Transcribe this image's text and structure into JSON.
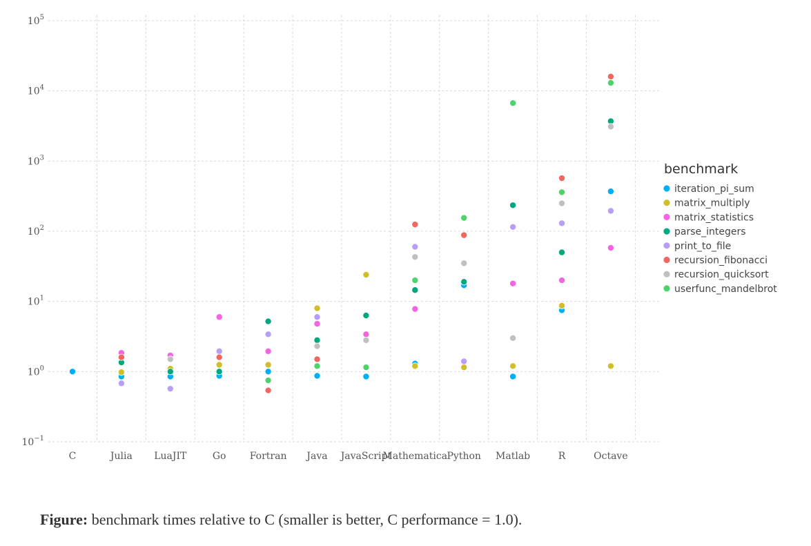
{
  "chart_data": {
    "type": "scatter",
    "y_scale": "log10",
    "ylim": [
      0.1,
      100000
    ],
    "ytick_labels": [
      {
        "base": "10",
        "exp": "−1"
      },
      {
        "base": "10",
        "exp": "0"
      },
      {
        "base": "10",
        "exp": "1"
      },
      {
        "base": "10",
        "exp": "2"
      },
      {
        "base": "10",
        "exp": "3"
      },
      {
        "base": "10",
        "exp": "4"
      },
      {
        "base": "10",
        "exp": "5"
      }
    ],
    "grid": true,
    "legend_placement": "right",
    "legend_title": "benchmark",
    "categories": [
      "C",
      "Julia",
      "LuaJIT",
      "Go",
      "Fortran",
      "Java",
      "JavaScript",
      "Mathematica",
      "Python",
      "Matlab",
      "R",
      "Octave"
    ],
    "series": [
      {
        "name": "iteration_pi_sum",
        "color": "#00B0F6",
        "values": [
          1.0,
          0.85,
          0.85,
          0.87,
          1.0,
          0.87,
          0.85,
          1.3,
          17,
          0.85,
          7.5,
          370
        ]
      },
      {
        "name": "matrix_multiply",
        "color": "#D0BE2A",
        "values": [
          null,
          0.98,
          1.1,
          1.25,
          1.25,
          8.0,
          24,
          1.2,
          1.15,
          1.2,
          8.7,
          1.2
        ]
      },
      {
        "name": "matrix_statistics",
        "color": "#F564E3",
        "values": [
          null,
          1.85,
          1.7,
          6.0,
          1.95,
          4.8,
          3.4,
          7.8,
          null,
          18,
          20,
          58
        ]
      },
      {
        "name": "parse_integers",
        "color": "#00A87E",
        "values": [
          null,
          1.35,
          1.0,
          1.0,
          5.2,
          2.8,
          6.3,
          14.5,
          19,
          235,
          50,
          3700
        ]
      },
      {
        "name": "print_to_file",
        "color": "#B79FF8",
        "values": [
          null,
          0.68,
          0.57,
          1.95,
          3.4,
          6.0,
          null,
          60,
          1.4,
          115,
          130,
          195
        ]
      },
      {
        "name": "recursion_fibonacci",
        "color": "#F0675F",
        "values": [
          null,
          1.6,
          null,
          1.6,
          0.54,
          1.5,
          null,
          125,
          88,
          null,
          570,
          16000
        ]
      },
      {
        "name": "recursion_quicksort",
        "color": "#C0C0C0",
        "values": [
          null,
          null,
          1.5,
          null,
          null,
          2.3,
          2.8,
          43,
          35,
          3.0,
          250,
          3100
        ]
      },
      {
        "name": "userfunc_mandelbrot",
        "color": "#4ED36A",
        "values": [
          null,
          null,
          null,
          null,
          0.75,
          1.2,
          1.15,
          20,
          155,
          6700,
          360,
          13000
        ]
      }
    ]
  },
  "caption": {
    "label": "Figure:",
    "text": " benchmark times relative to C (smaller is better, C performance = 1.0)."
  }
}
